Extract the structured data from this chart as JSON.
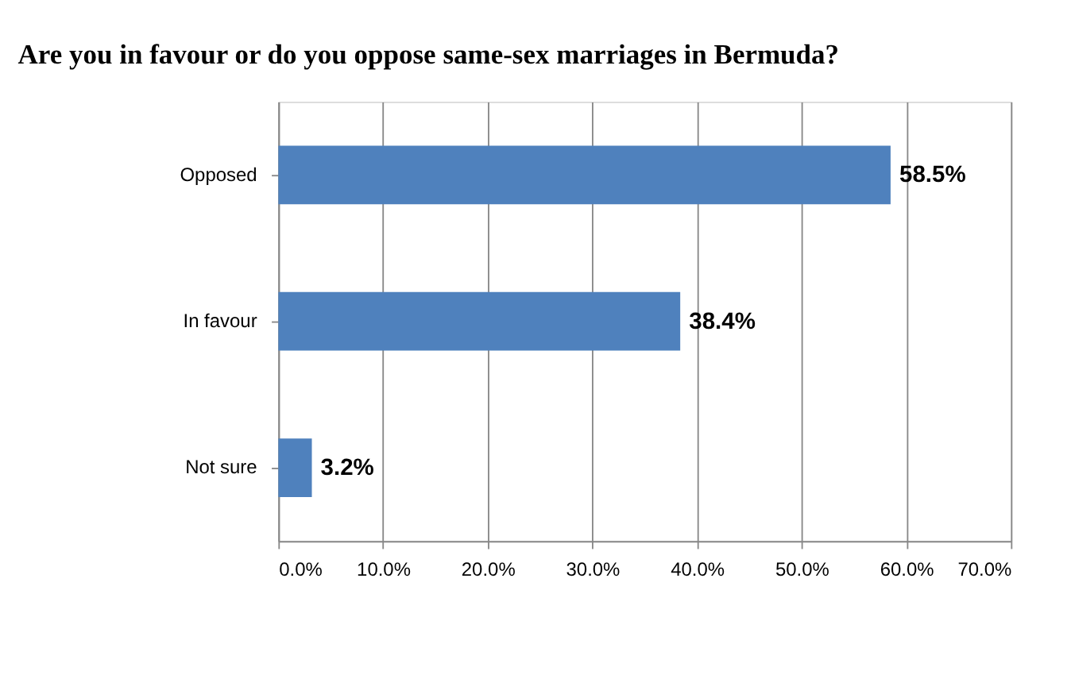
{
  "chart_data": {
    "type": "bar",
    "orientation": "horizontal",
    "title": "Are you in favour or do you oppose same-sex marriages in Bermuda?",
    "categories": [
      "Opposed",
      "In favour",
      "Not sure"
    ],
    "values": [
      58.5,
      38.4,
      3.2
    ],
    "value_labels": [
      "58.5%",
      "38.4%",
      "3.2%"
    ],
    "color": "#4f81bd",
    "xlim": [
      0,
      70
    ],
    "xticks": [
      {
        "value": 0,
        "label": "0.0%"
      },
      {
        "value": 10,
        "label": "10.0%"
      },
      {
        "value": 20,
        "label": "20.0%"
      },
      {
        "value": 30,
        "label": "30.0%"
      },
      {
        "value": 40,
        "label": "40.0%"
      },
      {
        "value": 50,
        "label": "50.0%"
      },
      {
        "value": 60,
        "label": "60.0%"
      },
      {
        "value": 70,
        "label": "70.0%"
      }
    ],
    "grid": "x"
  }
}
